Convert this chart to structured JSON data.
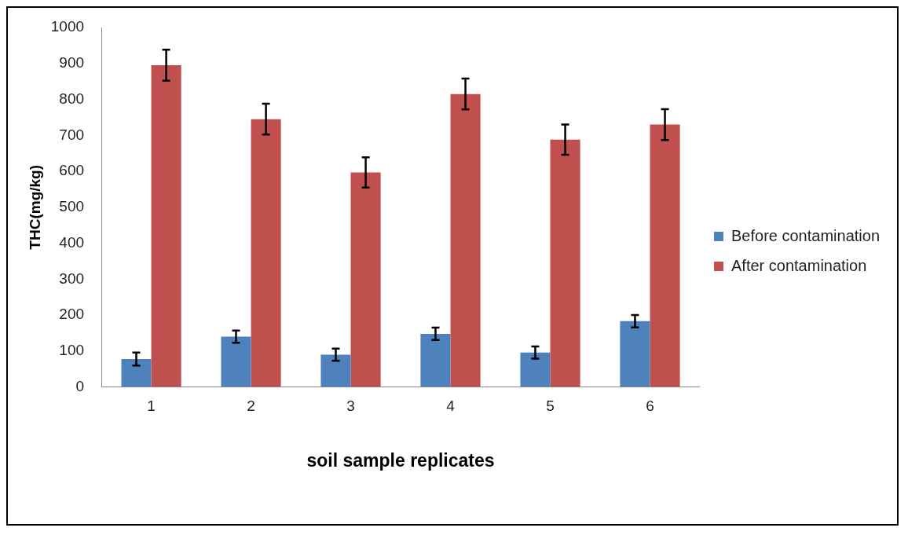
{
  "chart_data": {
    "type": "bar",
    "xlabel": "soil sample replicates",
    "ylabel": "THC(mg/kg)",
    "categories": [
      "1",
      "2",
      "3",
      "4",
      "5",
      "6"
    ],
    "series": [
      {
        "name": "Before contamination",
        "color": "#4f81bd",
        "values": [
          78,
          140,
          90,
          148,
          96,
          183
        ],
        "errors": [
          18,
          17,
          17,
          17,
          17,
          17
        ]
      },
      {
        "name": "After contamination",
        "color": "#c0504d",
        "values": [
          895,
          745,
          597,
          815,
          688,
          730
        ],
        "errors": [
          43,
          43,
          42,
          43,
          42,
          43
        ]
      }
    ],
    "ylim": [
      0,
      1000
    ],
    "yticks": [
      0,
      100,
      200,
      300,
      400,
      500,
      600,
      700,
      800,
      900,
      1000
    ],
    "grid": false,
    "legend": "right"
  }
}
